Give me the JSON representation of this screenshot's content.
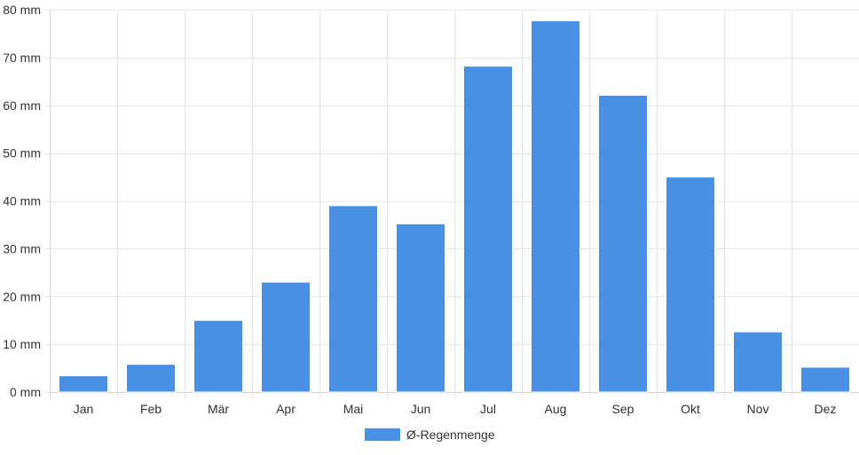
{
  "chart_data": {
    "type": "bar",
    "categories": [
      "Jan",
      "Feb",
      "Mär",
      "Apr",
      "Mai",
      "Jun",
      "Jul",
      "Aug",
      "Sep",
      "Okt",
      "Nov",
      "Dez"
    ],
    "series": [
      {
        "name": "Ø-Regenmenge",
        "color": "#4a90e2",
        "values": [
          3.4,
          5.8,
          15.0,
          23.0,
          39.0,
          35.2,
          68.2,
          77.7,
          62.1,
          45.0,
          12.6,
          5.2
        ]
      }
    ],
    "ylim": [
      0,
      80
    ],
    "yticks": [
      "0 mm",
      "10 mm",
      "20 mm",
      "30 mm",
      "40 mm",
      "50 mm",
      "60 mm",
      "70 mm",
      "80 mm"
    ],
    "ytick_values": [
      0,
      10,
      20,
      30,
      40,
      50,
      60,
      70,
      80
    ],
    "grid": true,
    "legend_position": "bottom"
  }
}
